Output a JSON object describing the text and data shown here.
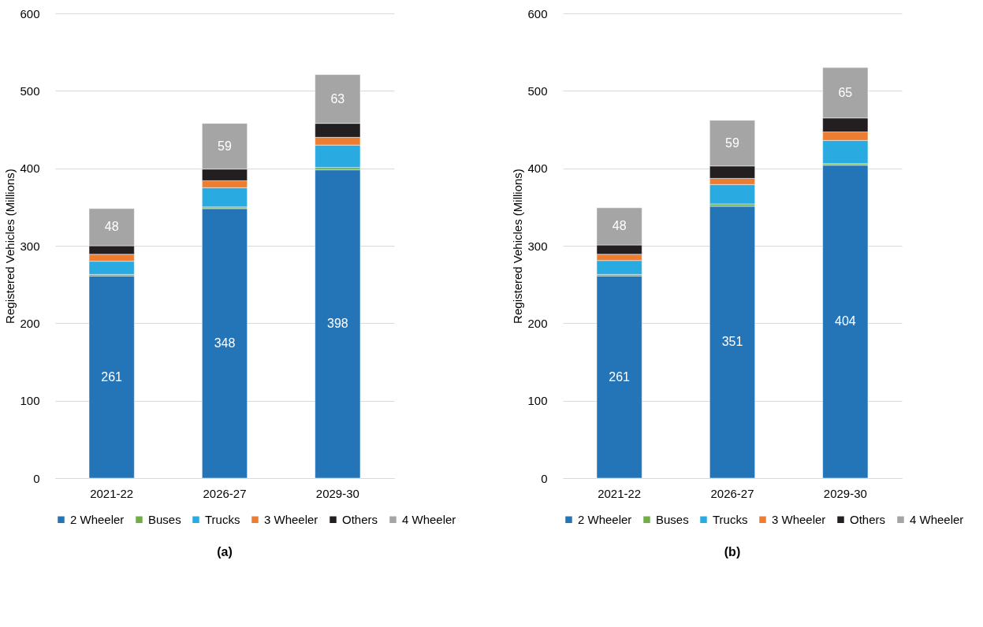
{
  "chart_data": [
    {
      "type": "bar",
      "stacked": true,
      "title": "(a)",
      "ylabel": "Registered Vehicles (Millions)",
      "categories": [
        "2021-22",
        "2026-27",
        "2029-30"
      ],
      "ylim": [
        0,
        600
      ],
      "yticks": [
        0,
        100,
        200,
        300,
        400,
        500,
        600
      ],
      "grid": "y",
      "legend": "bottom",
      "series": [
        {
          "name": "2 Wheeler",
          "color": "#2474b8",
          "values": [
            261,
            348,
            398
          ],
          "value_labels": [
            "261",
            "348",
            "398"
          ]
        },
        {
          "name": "Buses",
          "color": "#70ad47",
          "values": [
            2,
            2,
            3
          ]
        },
        {
          "name": "Trucks",
          "color": "#29abe2",
          "values": [
            17,
            25,
            29
          ]
        },
        {
          "name": "3 Wheeler",
          "color": "#ed7d31",
          "values": [
            9,
            9,
            10
          ]
        },
        {
          "name": "Others",
          "color": "#231f20",
          "values": [
            11,
            15,
            18
          ]
        },
        {
          "name": "4 Wheeler",
          "color": "#a5a5a5",
          "values": [
            48,
            59,
            63
          ],
          "value_labels": [
            "48",
            "59",
            "63"
          ]
        }
      ]
    },
    {
      "type": "bar",
      "stacked": true,
      "title": "(b)",
      "ylabel": "Registered Vehicles (Millions)",
      "categories": [
        "2021-22",
        "2026-27",
        "2029-30"
      ],
      "ylim": [
        0,
        600
      ],
      "yticks": [
        0,
        100,
        200,
        300,
        400,
        500,
        600
      ],
      "grid": "y",
      "legend": "bottom",
      "series": [
        {
          "name": "2 Wheeler",
          "color": "#2474b8",
          "values": [
            261,
            351,
            404
          ],
          "value_labels": [
            "261",
            "351",
            "404"
          ]
        },
        {
          "name": "Buses",
          "color": "#70ad47",
          "values": [
            2,
            3,
            2
          ]
        },
        {
          "name": "Trucks",
          "color": "#29abe2",
          "values": [
            18,
            25,
            30
          ]
        },
        {
          "name": "3 Wheeler",
          "color": "#ed7d31",
          "values": [
            8,
            8,
            11
          ]
        },
        {
          "name": "Others",
          "color": "#231f20",
          "values": [
            12,
            16,
            18
          ]
        },
        {
          "name": "4 Wheeler",
          "color": "#a5a5a5",
          "values": [
            48,
            59,
            65
          ],
          "value_labels": [
            "48",
            "59",
            "65"
          ]
        }
      ]
    }
  ]
}
